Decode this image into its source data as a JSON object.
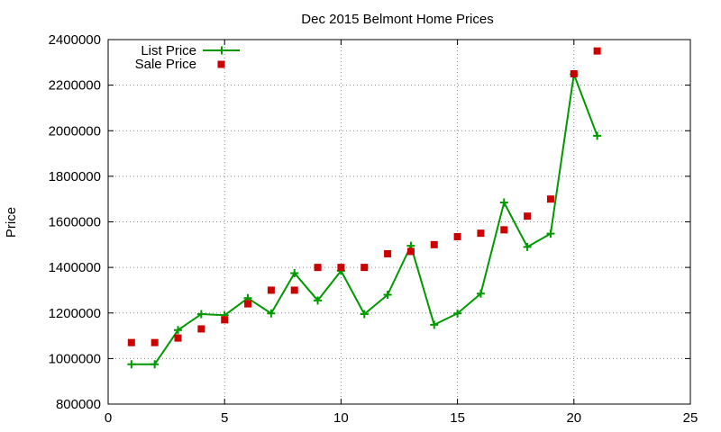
{
  "chart_data": {
    "type": "line",
    "title": "Dec 2015 Belmont Home Prices",
    "xlabel": "",
    "ylabel": "Price",
    "xlim": [
      0,
      25
    ],
    "ylim": [
      800000,
      2400000
    ],
    "xticks": [
      "0",
      "5",
      "10",
      "15",
      "20",
      "25"
    ],
    "yticks": [
      "800000",
      "1000000",
      "1200000",
      "1400000",
      "1600000",
      "1800000",
      "2000000",
      "2200000",
      "2400000"
    ],
    "grid": true,
    "legend_position": "top-left",
    "series": [
      {
        "name": "List Price",
        "style": "line-with-plus-markers",
        "color": "#009900",
        "x": [
          1,
          2,
          3,
          4,
          5,
          6,
          7,
          8,
          9,
          10,
          11,
          12,
          13,
          14,
          15,
          16,
          17,
          18,
          19,
          20,
          21
        ],
        "values": [
          975000,
          975000,
          1125000,
          1195000,
          1190000,
          1265000,
          1198000,
          1375000,
          1255000,
          1385000,
          1195000,
          1280000,
          1495000,
          1148000,
          1198000,
          1285000,
          1685000,
          1490000,
          1548000,
          2248000,
          1978000
        ]
      },
      {
        "name": "Sale Price",
        "style": "square-markers",
        "color": "#cc0000",
        "x": [
          1,
          2,
          3,
          4,
          5,
          6,
          7,
          8,
          9,
          10,
          11,
          12,
          13,
          14,
          15,
          16,
          17,
          18,
          19,
          20,
          21
        ],
        "values": [
          1070000,
          1070000,
          1090000,
          1130000,
          1170000,
          1240000,
          1300000,
          1300000,
          1400000,
          1400000,
          1400000,
          1460000,
          1470000,
          1500000,
          1535000,
          1550000,
          1565000,
          1625000,
          1700000,
          2250000,
          2350000
        ]
      }
    ]
  }
}
